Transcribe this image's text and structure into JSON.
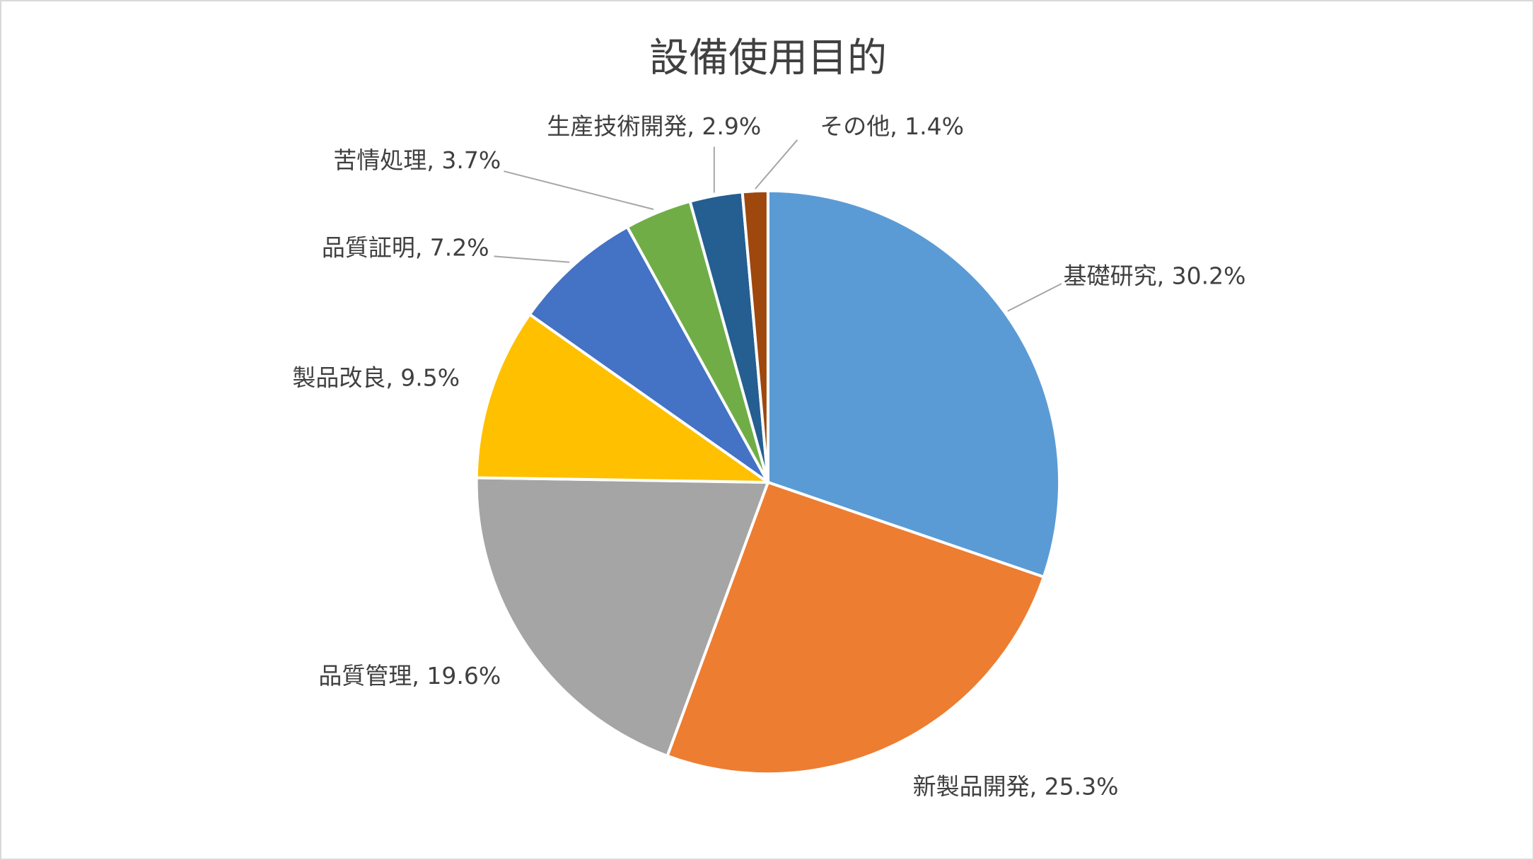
{
  "chart_data": {
    "type": "pie",
    "title": "設備使用目的",
    "categories": [
      "基礎研究",
      "新製品開発",
      "品質管理",
      "製品改良",
      "品質証明",
      "苦情処理",
      "生産技術開発",
      "その他"
    ],
    "values": [
      30.2,
      25.3,
      19.6,
      9.5,
      7.2,
      3.7,
      2.9,
      1.4
    ],
    "value_labels": [
      "30.2%",
      "25.3%",
      "19.6%",
      "9.5%",
      "7.2%",
      "3.7%",
      "2.9%",
      "1.4%"
    ],
    "label_separator": ", ",
    "colors": [
      "#5b9bd5",
      "#ed7d31",
      "#a5a5a5",
      "#ffc000",
      "#4472c4",
      "#70ad47",
      "#255e91",
      "#9e480e"
    ]
  }
}
